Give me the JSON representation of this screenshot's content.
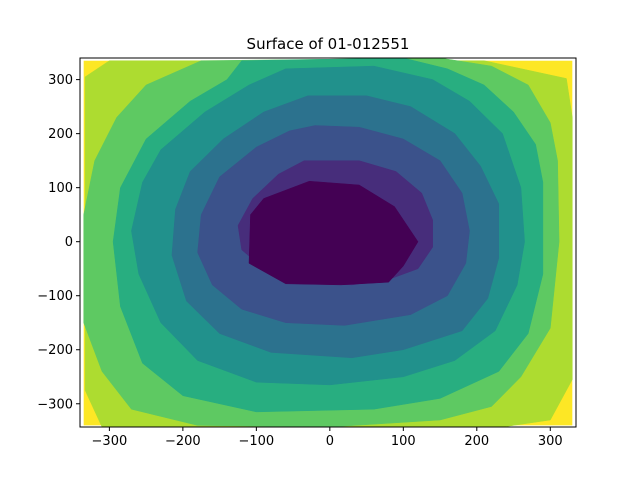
{
  "chart_data": {
    "type": "contourf",
    "title": "Surface of 01-012551",
    "xlabel": "",
    "ylabel": "",
    "xlim": [
      -340,
      335
    ],
    "ylim": [
      -343,
      340
    ],
    "xticks": [
      -300,
      -200,
      -100,
      0,
      100,
      200,
      300
    ],
    "yticks": [
      -300,
      -200,
      -100,
      0,
      100,
      200,
      300
    ],
    "colormap": "viridis",
    "grid": false,
    "levels": [
      {
        "level": 0,
        "color": "#440154"
      },
      {
        "level": 1,
        "color": "#472d7b"
      },
      {
        "level": 2,
        "color": "#3b528b"
      },
      {
        "level": 3,
        "color": "#2c728e"
      },
      {
        "level": 4,
        "color": "#21918c"
      },
      {
        "level": 5,
        "color": "#28ae80"
      },
      {
        "level": 6,
        "color": "#5ec962"
      },
      {
        "level": 7,
        "color": "#addc30"
      },
      {
        "level": 8,
        "color": "#fde725"
      }
    ],
    "contours": [
      {
        "level": 1,
        "points": [
          [
            -212,
            335
          ],
          [
            210,
            335
          ],
          [
            322,
            302
          ],
          [
            330,
            230
          ],
          [
            330,
            -255
          ],
          [
            300,
            -330
          ],
          [
            235,
            -343
          ],
          [
            -310,
            -343
          ],
          [
            -333,
            -275
          ],
          [
            -333,
            305
          ],
          [
            -300,
            335
          ]
        ]
      },
      {
        "level": 2,
        "points": [
          [
            -175,
            335
          ],
          [
            150,
            340
          ],
          [
            220,
            325
          ],
          [
            270,
            290
          ],
          [
            300,
            220
          ],
          [
            310,
            150
          ],
          [
            312,
            0
          ],
          [
            300,
            -160
          ],
          [
            260,
            -250
          ],
          [
            220,
            -305
          ],
          [
            150,
            -330
          ],
          [
            0,
            -343
          ],
          [
            -180,
            -340
          ],
          [
            -270,
            -310
          ],
          [
            -310,
            -240
          ],
          [
            -335,
            -150
          ],
          [
            -335,
            50
          ],
          [
            -320,
            150
          ],
          [
            -290,
            230
          ],
          [
            -250,
            290
          ]
        ]
      },
      {
        "level": 3,
        "points": [
          [
            -120,
            335
          ],
          [
            100,
            340
          ],
          [
            160,
            320
          ],
          [
            210,
            290
          ],
          [
            250,
            240
          ],
          [
            280,
            180
          ],
          [
            290,
            110
          ],
          [
            290,
            -60
          ],
          [
            270,
            -170
          ],
          [
            230,
            -240
          ],
          [
            150,
            -290
          ],
          [
            60,
            -310
          ],
          [
            -100,
            -315
          ],
          [
            -200,
            -285
          ],
          [
            -255,
            -225
          ],
          [
            -285,
            -120
          ],
          [
            -295,
            0
          ],
          [
            -285,
            100
          ],
          [
            -250,
            190
          ],
          [
            -190,
            260
          ],
          [
            -140,
            300
          ]
        ]
      },
      {
        "level": 4,
        "points": [
          [
            -60,
            320
          ],
          [
            60,
            325
          ],
          [
            140,
            300
          ],
          [
            190,
            260
          ],
          [
            235,
            200
          ],
          [
            260,
            100
          ],
          [
            265,
            0
          ],
          [
            255,
            -80
          ],
          [
            225,
            -165
          ],
          [
            170,
            -220
          ],
          [
            100,
            -250
          ],
          [
            0,
            -265
          ],
          [
            -100,
            -260
          ],
          [
            -180,
            -220
          ],
          [
            -230,
            -150
          ],
          [
            -260,
            -60
          ],
          [
            -270,
            20
          ],
          [
            -255,
            110
          ],
          [
            -230,
            170
          ],
          [
            -170,
            240
          ],
          [
            -110,
            290
          ]
        ]
      },
      {
        "level": 5,
        "points": [
          [
            -30,
            270
          ],
          [
            50,
            270
          ],
          [
            110,
            250
          ],
          [
            170,
            200
          ],
          [
            205,
            140
          ],
          [
            230,
            70
          ],
          [
            230,
            -30
          ],
          [
            215,
            -105
          ],
          [
            180,
            -165
          ],
          [
            100,
            -200
          ],
          [
            30,
            -215
          ],
          [
            -80,
            -205
          ],
          [
            -150,
            -170
          ],
          [
            -195,
            -110
          ],
          [
            -215,
            -25
          ],
          [
            -210,
            60
          ],
          [
            -190,
            130
          ],
          [
            -145,
            190
          ],
          [
            -90,
            240
          ]
        ]
      },
      {
        "level": 6,
        "points": [
          [
            -20,
            215
          ],
          [
            40,
            212
          ],
          [
            100,
            190
          ],
          [
            150,
            150
          ],
          [
            180,
            90
          ],
          [
            190,
            20
          ],
          [
            185,
            -40
          ],
          [
            160,
            -100
          ],
          [
            110,
            -135
          ],
          [
            20,
            -155
          ],
          [
            -60,
            -150
          ],
          [
            -120,
            -125
          ],
          [
            -160,
            -80
          ],
          [
            -180,
            -20
          ],
          [
            -175,
            50
          ],
          [
            -150,
            120
          ],
          [
            -100,
            175
          ],
          [
            -55,
            205
          ]
        ]
      },
      {
        "level": 7,
        "points": [
          [
            -35,
            150
          ],
          [
            40,
            150
          ],
          [
            90,
            130
          ],
          [
            125,
            90
          ],
          [
            140,
            40
          ],
          [
            140,
            -10
          ],
          [
            120,
            -50
          ],
          [
            80,
            -70
          ],
          [
            30,
            -80
          ],
          [
            -40,
            -75
          ],
          [
            -90,
            -50
          ],
          [
            -120,
            -15
          ],
          [
            -125,
            30
          ],
          [
            -105,
            80
          ],
          [
            -70,
            125
          ]
        ]
      },
      {
        "level": 8,
        "points": [
          [
            -28,
            112
          ],
          [
            40,
            105
          ],
          [
            88,
            65
          ],
          [
            120,
            0
          ],
          [
            100,
            -45
          ],
          [
            80,
            -75
          ],
          [
            15,
            -80
          ],
          [
            -60,
            -78
          ],
          [
            -110,
            -40
          ],
          [
            -108,
            50
          ],
          [
            -90,
            80
          ]
        ]
      }
    ]
  }
}
